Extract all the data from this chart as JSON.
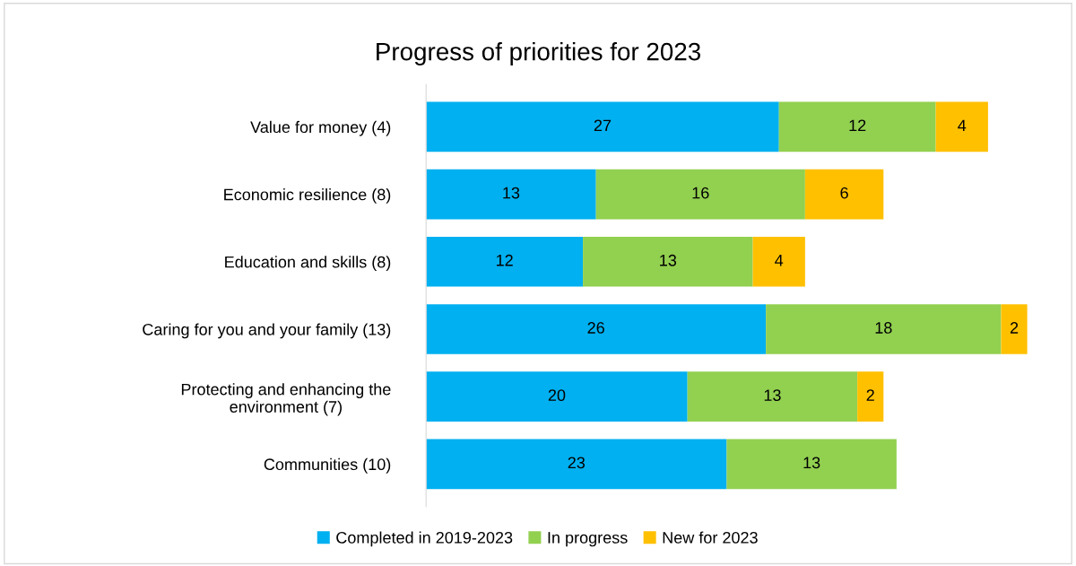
{
  "chart_data": {
    "type": "bar",
    "orientation": "horizontal",
    "stacked": true,
    "title": "Progress of priorities for 2023",
    "categories": [
      "Value for money (4)",
      "Economic resilience (8)",
      "Education and skills (8)",
      "Caring for you and your family (13)",
      "Protecting and enhancing the\nenvironment (7)",
      "Communities (10)"
    ],
    "series": [
      {
        "name": "Completed in 2019-2023",
        "color": "#00b0f0",
        "values": [
          27,
          13,
          12,
          26,
          20,
          23
        ]
      },
      {
        "name": "In progress",
        "color": "#92d050",
        "values": [
          12,
          16,
          13,
          18,
          13,
          13
        ]
      },
      {
        "name": "New for 2023",
        "color": "#ffc000",
        "values": [
          4,
          6,
          4,
          2,
          2,
          null
        ]
      }
    ],
    "data_labels": true,
    "legend": "bottom",
    "grid": false
  }
}
